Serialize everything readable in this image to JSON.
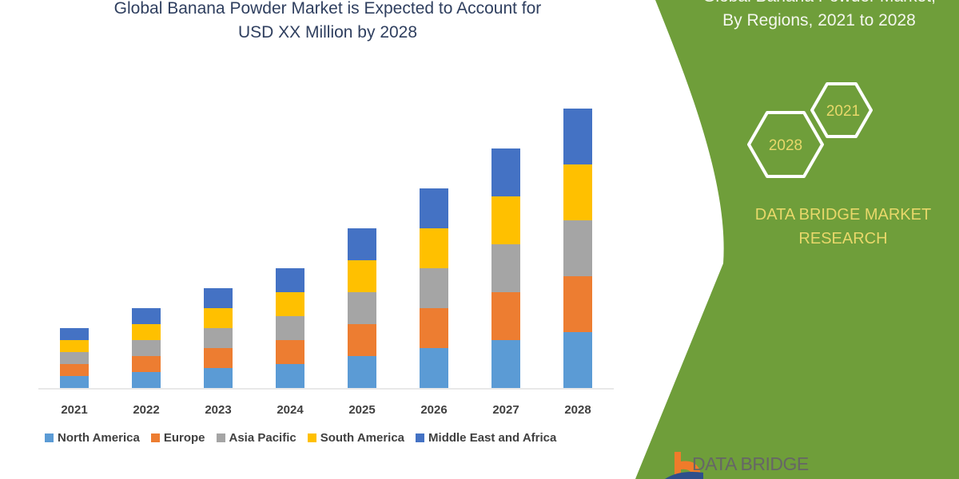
{
  "header": {
    "title_line1": "Global Banana Powder Market is Expected to Account for",
    "title_line2": "USD XX Million by 2028"
  },
  "side_panel": {
    "title_line1": "Global Banana Powder Market,",
    "title_line2": "By Regions, 2021 to 2028",
    "hex_start_year": "2021",
    "hex_end_year": "2028",
    "brand_line1": "DATA BRIDGE MARKET",
    "brand_line2": "RESEARCH",
    "logo_text": "DATA BRIDGE",
    "panel_color": "#6f9e3a",
    "brand_text_color": "#e8d86a"
  },
  "chart_data": {
    "type": "bar",
    "stacked": true,
    "title": "Global Banana Powder Market is Expected to Account for USD XX Million by 2028",
    "xlabel": "",
    "ylabel": "",
    "y_axis_shown": false,
    "grid": false,
    "legend_position": "bottom",
    "ylim": [
      0,
      400
    ],
    "categories": [
      "2021",
      "2022",
      "2023",
      "2024",
      "2025",
      "2026",
      "2027",
      "2028"
    ],
    "series": [
      {
        "name": "North America",
        "color": "#5b9bd5",
        "values": [
          15,
          20,
          25,
          30,
          40,
          50,
          60,
          70
        ]
      },
      {
        "name": "Europe",
        "color": "#ed7d31",
        "values": [
          15,
          20,
          25,
          30,
          40,
          50,
          60,
          70
        ]
      },
      {
        "name": "Asia Pacific",
        "color": "#a5a5a5",
        "values": [
          15,
          20,
          25,
          30,
          40,
          50,
          60,
          70
        ]
      },
      {
        "name": "South America",
        "color": "#ffc000",
        "values": [
          15,
          20,
          25,
          30,
          40,
          50,
          60,
          70
        ]
      },
      {
        "name": "Middle East and Africa",
        "color": "#4472c4",
        "values": [
          15,
          20,
          25,
          30,
          40,
          50,
          60,
          70
        ]
      }
    ]
  }
}
